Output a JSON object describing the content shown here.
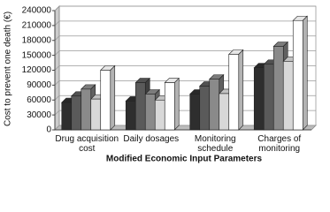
{
  "chart_data": {
    "type": "bar3d",
    "y_label": "Cost to prevent one death (€)",
    "x_label": "Modified Economic Input Parameters",
    "categories": [
      "Drug acquisition cost",
      "Daily dosages",
      "Monitoring schedule",
      "Charges of monitoring"
    ],
    "series": [
      {
        "color": "#2e2e2e",
        "values": [
          55000,
          58000,
          72000,
          125000
        ]
      },
      {
        "color": "#5a5a5a",
        "values": [
          68000,
          95000,
          88000,
          132000
        ]
      },
      {
        "color": "#8a8a8a",
        "values": [
          82000,
          72000,
          102000,
          168000
        ]
      },
      {
        "color": "#d8d8d8",
        "values": [
          62000,
          60000,
          73000,
          138000
        ]
      },
      {
        "color": "#ffffff",
        "values": [
          120000,
          95000,
          152000,
          220000
        ]
      }
    ],
    "ylim": [
      0,
      240000
    ],
    "yticks": [
      0,
      30000,
      60000,
      90000,
      120000,
      150000,
      180000,
      210000,
      240000
    ],
    "grid": true
  }
}
